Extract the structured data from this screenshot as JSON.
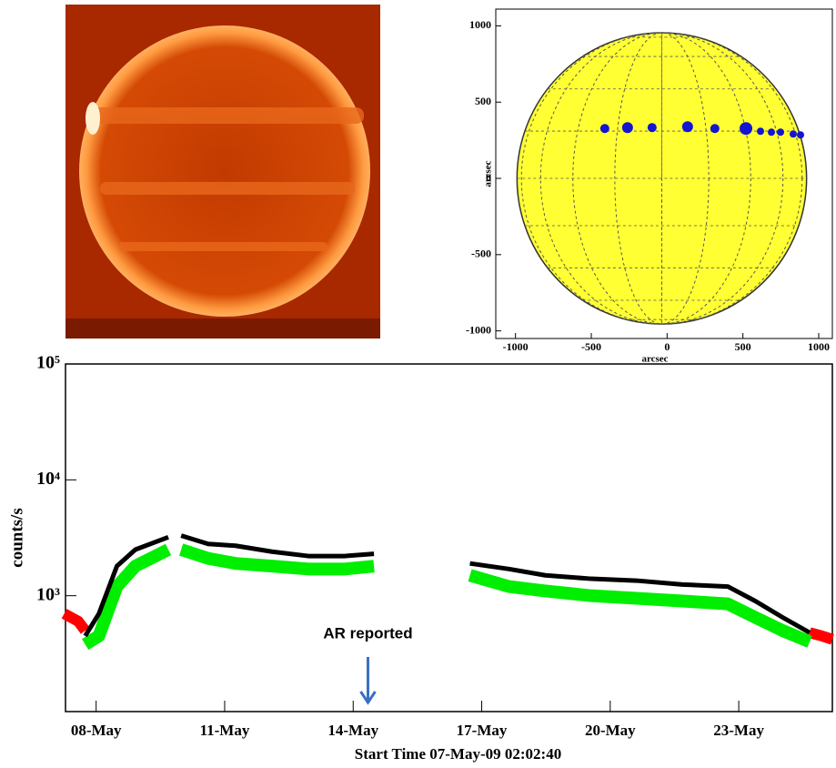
{
  "chart_data": [
    {
      "type": "scatter",
      "xlabel": "arcsec",
      "ylabel": "arcsec",
      "x": [
        -411,
        -261,
        -99,
        135,
        315,
        520,
        616,
        688,
        748,
        832,
        880
      ],
      "values": [
        327,
        333,
        333,
        339,
        327,
        327,
        309,
        303,
        303,
        291,
        285
      ],
      "sizes": [
        5,
        6,
        5,
        6,
        5,
        7,
        4,
        4,
        4,
        4,
        4
      ],
      "color": "#1414d2",
      "xlim": [
        -1130,
        1090
      ],
      "ylim": [
        -1050,
        1110
      ],
      "xticks": [
        -1000,
        -500,
        0,
        500,
        1000
      ],
      "yticks": [
        -1000,
        -500,
        0,
        500,
        1000
      ]
    },
    {
      "type": "line",
      "ylabel": "counts/s",
      "xlabel": "Start Time 07-May-09 02:02:40",
      "log_scale": true,
      "x": [
        0.17,
        0.5,
        0.66,
        0.98,
        1.4,
        1.83,
        2.6,
        2.75,
        2.9,
        3.53,
        4.17,
        5.02,
        5.87,
        6.72,
        7.4,
        8.5,
        9.64,
        10.55,
        11.4,
        12.47,
        13.53,
        14.6,
        15.66,
        16.3,
        16.94,
        17.57,
        17.85,
        18.1
      ],
      "series": [
        {
          "color": "#ff0000",
          "values": [
            700,
            600,
            500,
            null,
            null,
            null,
            null,
            null,
            null,
            null,
            null,
            null,
            null,
            null,
            null,
            null,
            null,
            null,
            null,
            null,
            null,
            null,
            null,
            null,
            null,
            480,
            450,
            420
          ]
        },
        {
          "color": "#00ee00",
          "values": [
            null,
            null,
            380,
            450,
            1200,
            1800,
            2500,
            null,
            2500,
            2100,
            1900,
            1800,
            1700,
            1700,
            1800,
            null,
            1500,
            1200,
            1100,
            1000,
            950,
            900,
            850,
            650,
            500,
            400,
            null,
            null
          ]
        },
        {
          "color": "#000000",
          "values": [
            null,
            null,
            450,
            700,
            1800,
            2500,
            3200,
            null,
            3300,
            2800,
            2700,
            2400,
            2200,
            2200,
            2300,
            null,
            1900,
            1700,
            1500,
            1400,
            1350,
            1250,
            1200,
            900,
            650,
            480,
            null,
            null
          ]
        }
      ],
      "xlim": [
        0.2,
        18.1
      ],
      "ylim": [
        100,
        100000
      ],
      "xticks": [
        {
          "value": 0.915,
          "label": "08-May"
        },
        {
          "value": 3.915,
          "label": "11-May"
        },
        {
          "value": 6.915,
          "label": "14-May"
        },
        {
          "value": 9.915,
          "label": "17-May"
        },
        {
          "value": 12.915,
          "label": "20-May"
        },
        {
          "value": 15.915,
          "label": "23-May"
        }
      ],
      "yticks": [
        {
          "value": 1000,
          "label": "10³"
        },
        {
          "value": 10000,
          "label": "10⁴"
        },
        {
          "value": 100000,
          "label": "10⁵"
        }
      ],
      "annotations": [
        {
          "text": "AR reported",
          "x": 7.26
        }
      ]
    }
  ]
}
